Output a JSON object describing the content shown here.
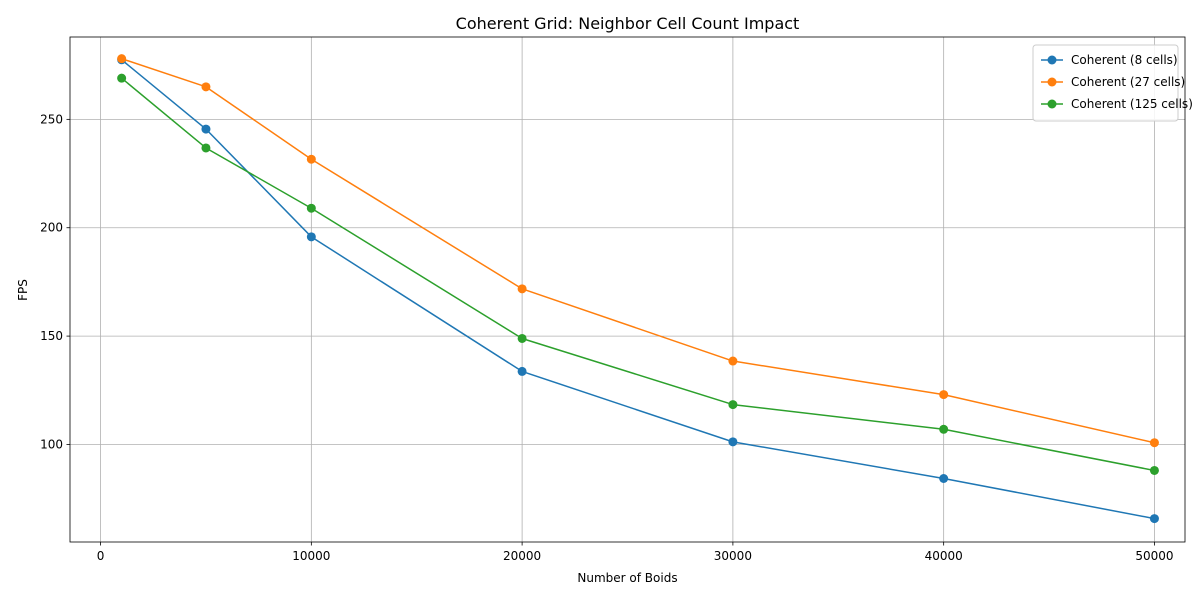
{
  "chart_data": {
    "type": "line",
    "title": "Coherent Grid: Neighbor Cell Count Impact",
    "xlabel": "Number of Boids",
    "ylabel": "FPS",
    "xlim": [
      -1450,
      51450
    ],
    "ylim": [
      55,
      288
    ],
    "xticks": [
      0,
      10000,
      20000,
      30000,
      40000,
      50000
    ],
    "yticks": [
      100,
      150,
      200,
      250
    ],
    "grid": true,
    "legend_position": "top-right",
    "x": [
      1000,
      5000,
      10000,
      20000,
      30000,
      40000,
      50000
    ],
    "series": [
      {
        "name": "Coherent (8 cells)",
        "color": "#1f77b4",
        "values": [
          277.5,
          245.5,
          195.8,
          133.7,
          101.2,
          84.3,
          65.8
        ]
      },
      {
        "name": "Coherent (27 cells)",
        "color": "#ff7f0e",
        "values": [
          278.0,
          265.0,
          231.6,
          171.8,
          138.5,
          123.0,
          100.8
        ]
      },
      {
        "name": "Coherent (125 cells)",
        "color": "#2ca02c",
        "values": [
          269.0,
          236.8,
          209.0,
          148.9,
          118.4,
          107.0,
          88.0
        ]
      }
    ]
  }
}
